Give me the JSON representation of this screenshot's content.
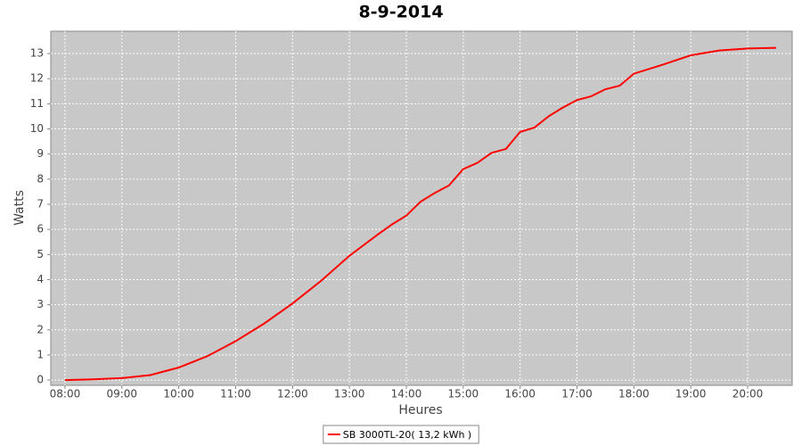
{
  "chart_data": {
    "type": "line",
    "title": "8-9-2014",
    "x_label": "Heures",
    "y_label": "Watts",
    "x": [
      "08:00",
      "08:30",
      "09:00",
      "09:30",
      "10:00",
      "10:30",
      "11:00",
      "11:30",
      "12:00",
      "12:30",
      "13:00",
      "13:30",
      "13:45",
      "14:00",
      "14:15",
      "14:30",
      "14:45",
      "15:00",
      "15:15",
      "15:30",
      "15:45",
      "16:00",
      "16:15",
      "16:30",
      "16:45",
      "17:00",
      "17:15",
      "17:30",
      "17:45",
      "18:00",
      "18:30",
      "19:00",
      "19:30",
      "20:00",
      "20:30"
    ],
    "series": [
      {
        "name": "SB 3000TL-20( 13,2 kWh )",
        "color": "#ff0000",
        "values": [
          0,
          0.03,
          0.08,
          0.2,
          0.5,
          0.95,
          1.55,
          2.25,
          3.05,
          3.95,
          4.95,
          5.8,
          6.2,
          6.55,
          7.1,
          7.45,
          7.75,
          8.4,
          8.65,
          9.05,
          9.2,
          9.88,
          10.05,
          10.5,
          10.85,
          11.15,
          11.3,
          11.58,
          11.72,
          12.2,
          12.55,
          12.93,
          13.12,
          13.2,
          13.23
        ]
      }
    ],
    "xlim": [
      "07:45",
      "20:47"
    ],
    "xticks": [
      "08:00",
      "09:00",
      "10:00",
      "11:00",
      "12:00",
      "13:00",
      "14:00",
      "15:00",
      "16:00",
      "17:00",
      "18:00",
      "19:00",
      "20:00"
    ],
    "ylim": [
      -0.21,
      13.89
    ],
    "yticks": [
      0,
      1,
      2,
      3,
      4,
      5,
      6,
      7,
      8,
      9,
      10,
      11,
      12,
      13
    ],
    "grid": true,
    "legend": "bottom",
    "background": "#c8c8c8"
  }
}
